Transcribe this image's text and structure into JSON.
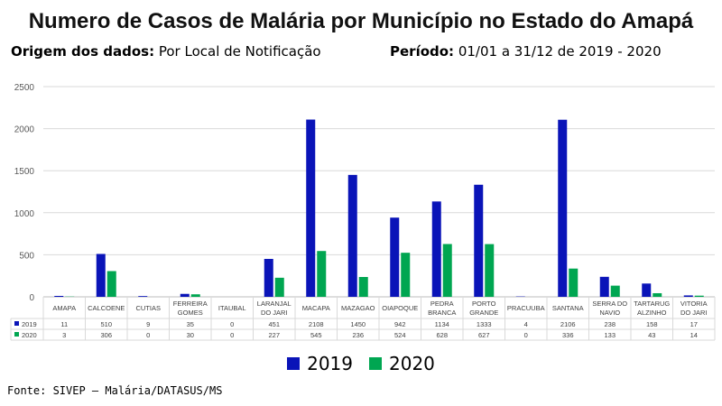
{
  "header": {
    "title": "Numero de Casos de Malária por Município no Estado do Amapá",
    "origin_label": "Origem dos dados:",
    "origin_value": "Por Local de Notificação",
    "period_label": "Período:",
    "period_value": "01/01 a 31/12 de 2019 - 2020"
  },
  "source": "Fonte: SIVEP – Malária/DATASUS/MS",
  "chart_data": {
    "type": "bar",
    "title": "Numero de Casos de Malária por Município no Estado do Amapá",
    "ylim": [
      0,
      2500
    ],
    "yticks": [
      0,
      500,
      1000,
      1500,
      2000,
      2500
    ],
    "grid": true,
    "legend_position": "bottom",
    "categories": [
      [
        "AMAPA"
      ],
      [
        "CALCOENE"
      ],
      [
        "CUTIAS"
      ],
      [
        "FERREIRA",
        "GOMES"
      ],
      [
        "ITAUBAL"
      ],
      [
        "LARANJAL",
        "DO JARI"
      ],
      [
        "MACAPA"
      ],
      [
        "MAZAGAO"
      ],
      [
        "OIAPOQUE"
      ],
      [
        "PEDRA",
        "BRANCA"
      ],
      [
        "PORTO",
        "GRANDE"
      ],
      [
        "PRACUUBA"
      ],
      [
        "SANTANA"
      ],
      [
        "SERRA DO",
        "NAVIO"
      ],
      [
        "TARTARUG",
        "ALZINHO"
      ],
      [
        "VITORIA",
        "DO JARI"
      ]
    ],
    "series": [
      {
        "name": "2019",
        "color": "#0a14b8",
        "values": [
          11,
          510,
          9,
          35,
          0,
          451,
          2108,
          1450,
          942,
          1134,
          1333,
          4,
          2106,
          238,
          158,
          17
        ]
      },
      {
        "name": "2020",
        "color": "#00a651",
        "values": [
          3,
          306,
          0,
          30,
          0,
          227,
          545,
          236,
          524,
          628,
          627,
          0,
          336,
          133,
          43,
          14
        ]
      }
    ]
  }
}
